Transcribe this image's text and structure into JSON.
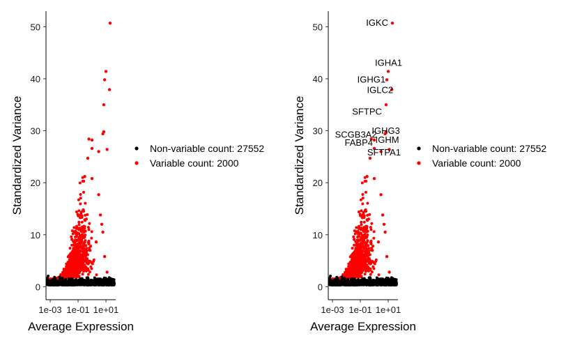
{
  "colors": {
    "non_variable": "#000000",
    "variable": "#ff0000",
    "axis": "#000000",
    "background": "#ffffff"
  },
  "chart_data": [
    {
      "type": "scatter",
      "title": "",
      "xlabel": "Average Expression",
      "ylabel": "Standardized Variance",
      "x_scale": "log10",
      "xlim": [
        0.0005,
        50
      ],
      "ylim": [
        -2.5,
        53
      ],
      "x_ticks": [
        {
          "value": 0.001,
          "label": "1e-03"
        },
        {
          "value": 0.1,
          "label": "1e-01"
        },
        {
          "value": 10,
          "label": "1e+01"
        }
      ],
      "y_ticks": [
        0,
        10,
        20,
        30,
        40,
        50
      ],
      "grid": false,
      "legend_position": "right",
      "series": [
        {
          "name": "Non-variable count: 27552",
          "color": "#000000",
          "points": [
            [
              0.002,
              1.0
            ],
            [
              0.01,
              0.9
            ],
            [
              0.05,
              0.9
            ],
            [
              0.3,
              0.8
            ],
            [
              2,
              0.7
            ],
            [
              10,
              0.8
            ],
            [
              30,
              0.9
            ]
          ]
        },
        {
          "name": "Variable count: 2000",
          "color": "#ff0000",
          "points": [
            [
              20,
              50.7
            ],
            [
              10,
              41.4
            ],
            [
              8,
              39.8
            ],
            [
              18,
              37.9
            ],
            [
              7,
              35.0
            ],
            [
              7,
              29.8
            ],
            [
              6,
              29.4
            ],
            [
              0.6,
              28.4
            ],
            [
              1,
              28.2
            ],
            [
              1,
              26.6
            ],
            [
              12,
              26.4
            ],
            [
              3,
              26.0
            ],
            [
              0.5,
              24.7
            ],
            [
              0.3,
              21.2
            ],
            [
              0.25,
              20.3
            ],
            [
              1,
              20.8
            ],
            [
              3,
              17.7
            ],
            [
              4,
              13.8
            ],
            [
              5,
              12.0
            ],
            [
              6,
              10.5
            ],
            [
              2,
              8.6
            ],
            [
              8,
              5.8
            ],
            [
              12,
              2.8
            ],
            [
              0.03,
              5.0
            ],
            [
              0.01,
              3.0
            ]
          ]
        }
      ],
      "annotations": []
    },
    {
      "type": "scatter",
      "title": "",
      "xlabel": "Average Expression",
      "ylabel": "Standardized Variance",
      "x_scale": "log10",
      "xlim": [
        0.0005,
        50
      ],
      "ylim": [
        -2.5,
        53
      ],
      "x_ticks": [
        {
          "value": 0.001,
          "label": "1e-03"
        },
        {
          "value": 0.1,
          "label": "1e-01"
        },
        {
          "value": 10,
          "label": "1e+01"
        }
      ],
      "y_ticks": [
        0,
        10,
        20,
        30,
        40,
        50
      ],
      "grid": false,
      "legend_position": "right",
      "series": [
        {
          "name": "Non-variable count: 27552",
          "color": "#000000",
          "points": [
            [
              0.002,
              1.0
            ],
            [
              0.01,
              0.9
            ],
            [
              0.05,
              0.9
            ],
            [
              0.3,
              0.8
            ],
            [
              2,
              0.7
            ],
            [
              10,
              0.8
            ],
            [
              30,
              0.9
            ]
          ]
        },
        {
          "name": "Variable count: 2000",
          "color": "#ff0000",
          "points": [
            [
              20,
              50.7
            ],
            [
              10,
              41.4
            ],
            [
              8,
              39.8
            ],
            [
              18,
              37.9
            ],
            [
              7,
              35.0
            ],
            [
              7,
              29.8
            ],
            [
              6,
              29.4
            ],
            [
              0.6,
              28.4
            ],
            [
              1,
              28.2
            ],
            [
              1,
              26.6
            ],
            [
              12,
              26.4
            ],
            [
              3,
              26.0
            ],
            [
              0.5,
              24.7
            ],
            [
              0.3,
              21.2
            ],
            [
              0.25,
              20.3
            ],
            [
              1,
              20.8
            ],
            [
              3,
              17.7
            ],
            [
              4,
              13.8
            ],
            [
              5,
              12.0
            ],
            [
              6,
              10.5
            ],
            [
              2,
              8.6
            ],
            [
              8,
              5.8
            ],
            [
              12,
              2.8
            ],
            [
              0.03,
              5.0
            ],
            [
              0.01,
              3.0
            ]
          ]
        }
      ],
      "annotations": [
        {
          "text": "IGKC",
          "x": 20,
          "y": 50.7
        },
        {
          "text": "IGHA1",
          "x": 10,
          "y": 41.4
        },
        {
          "text": "IGHG1",
          "x": 8,
          "y": 39.8
        },
        {
          "text": "IGLC2",
          "x": 18,
          "y": 37.9
        },
        {
          "text": "SFTPC",
          "x": 7,
          "y": 35.0
        },
        {
          "text": "SCGB3A2",
          "x": 0.6,
          "y": 28.4
        },
        {
          "text": "IGHG3",
          "x": 7,
          "y": 29.8
        },
        {
          "text": "FABP4",
          "x": 1,
          "y": 28.2
        },
        {
          "text": "IGHM",
          "x": 6,
          "y": 29.4
        },
        {
          "text": "SFTPA1",
          "x": 1,
          "y": 26.6
        }
      ]
    }
  ]
}
